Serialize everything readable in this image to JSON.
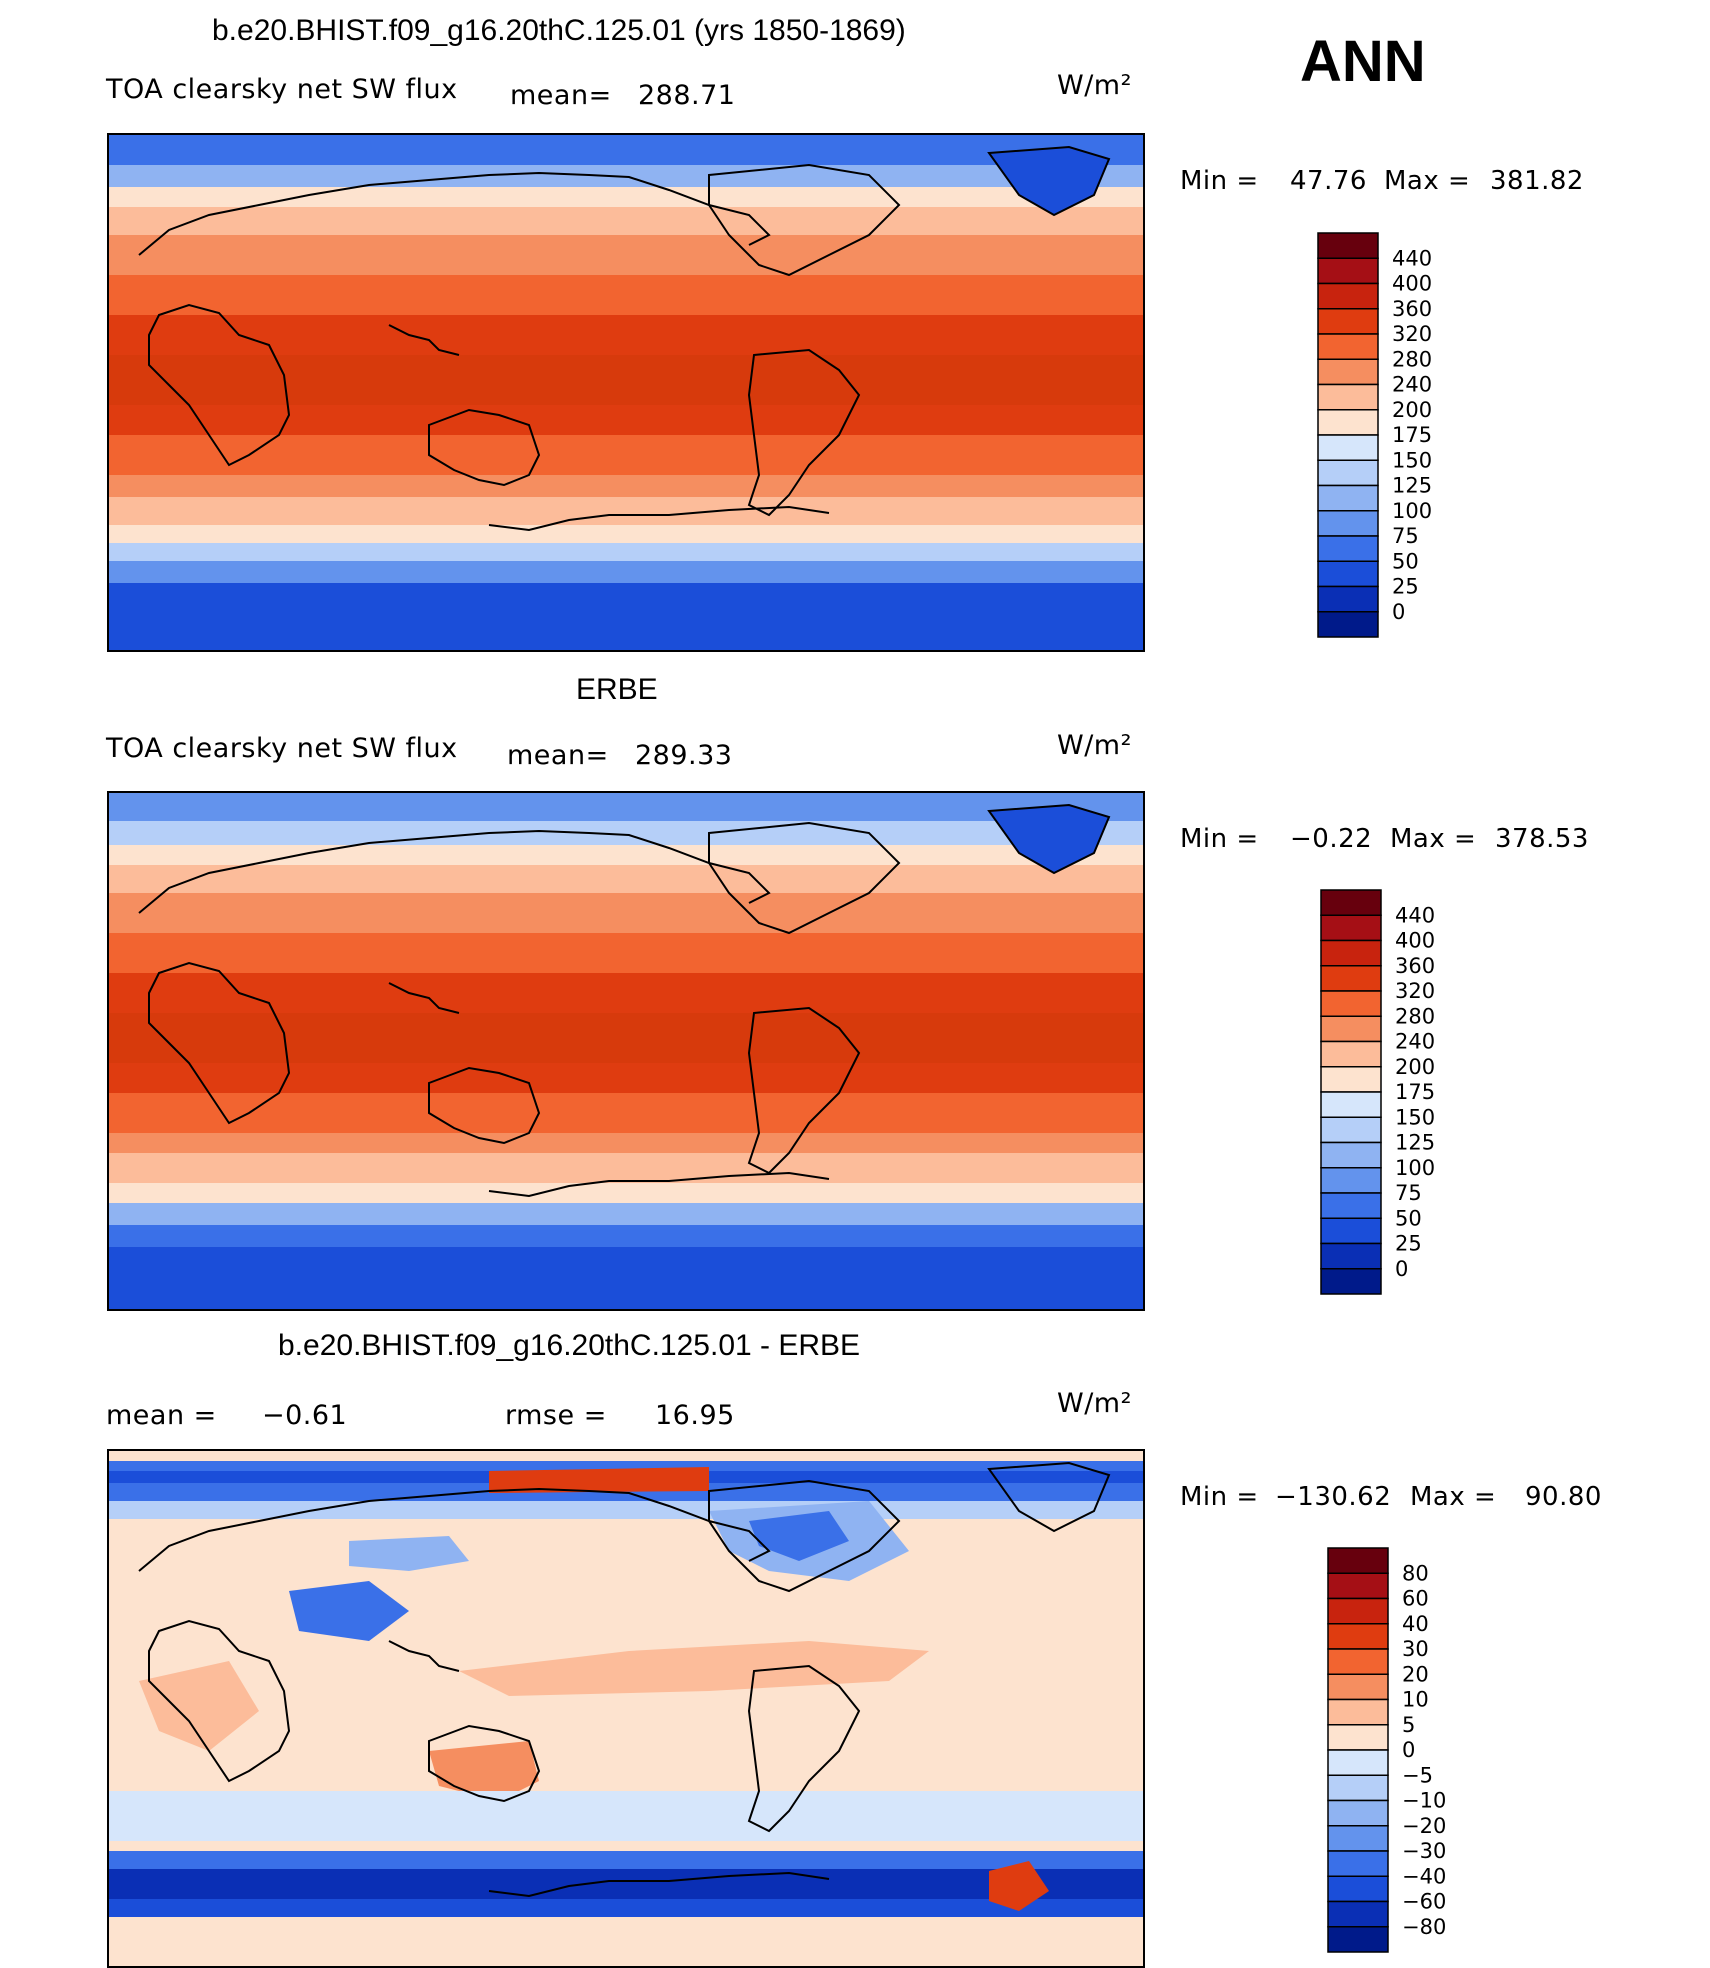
{
  "header": {
    "season": "ANN",
    "units": "W/m²"
  },
  "panels": [
    {
      "title": "b.e20.BHIST.f09_g16.20thC.125.01 (yrs 1850-1869)",
      "variable": "TOA clearsky net SW flux",
      "mean_label": "mean=",
      "mean": "288.71",
      "min_label": "Min =",
      "min": "47.76",
      "max_label": "Max =",
      "max": "381.82"
    },
    {
      "title": "ERBE",
      "variable": "TOA clearsky net SW flux",
      "mean_label": "mean=",
      "mean": "289.33",
      "min_label": "Min =",
      "min": "−0.22",
      "max_label": "Max =",
      "max": "378.53"
    },
    {
      "title": "b.e20.BHIST.f09_g16.20thC.125.01 - ERBE",
      "mean_label": "mean =",
      "mean": "−0.61",
      "rmse_label": "rmse =",
      "rmse": "16.95",
      "min_label": "Min =",
      "min": "−130.62",
      "max_label": "Max =",
      "max": "90.80"
    }
  ],
  "colorbars": {
    "absolute": {
      "labels": [
        "440",
        "400",
        "360",
        "320",
        "280",
        "240",
        "200",
        "175",
        "150",
        "125",
        "100",
        "75",
        "50",
        "25",
        "0"
      ],
      "colors": [
        "#67000d",
        "#a50f15",
        "#c8230e",
        "#df3c10",
        "#f26430",
        "#f58e60",
        "#fcbc9a",
        "#fde3cf",
        "#d6e6fb",
        "#b5cff8",
        "#8fb3f2",
        "#6393ed",
        "#3a70e8",
        "#1b4ed9",
        "#0a2fb5",
        "#001a8a"
      ]
    },
    "difference": {
      "labels": [
        "80",
        "60",
        "40",
        "30",
        "20",
        "10",
        "5",
        "0",
        "−5",
        "−10",
        "−20",
        "−30",
        "−40",
        "−60",
        "−80"
      ],
      "colors": [
        "#67000d",
        "#a50f15",
        "#c8230e",
        "#df3c10",
        "#f26430",
        "#f58e60",
        "#fcbc9a",
        "#fde3cf",
        "#d6e6fb",
        "#b5cff8",
        "#8fb3f2",
        "#6393ed",
        "#3a70e8",
        "#1b4ed9",
        "#0a2fb5",
        "#001a8a"
      ]
    }
  }
}
